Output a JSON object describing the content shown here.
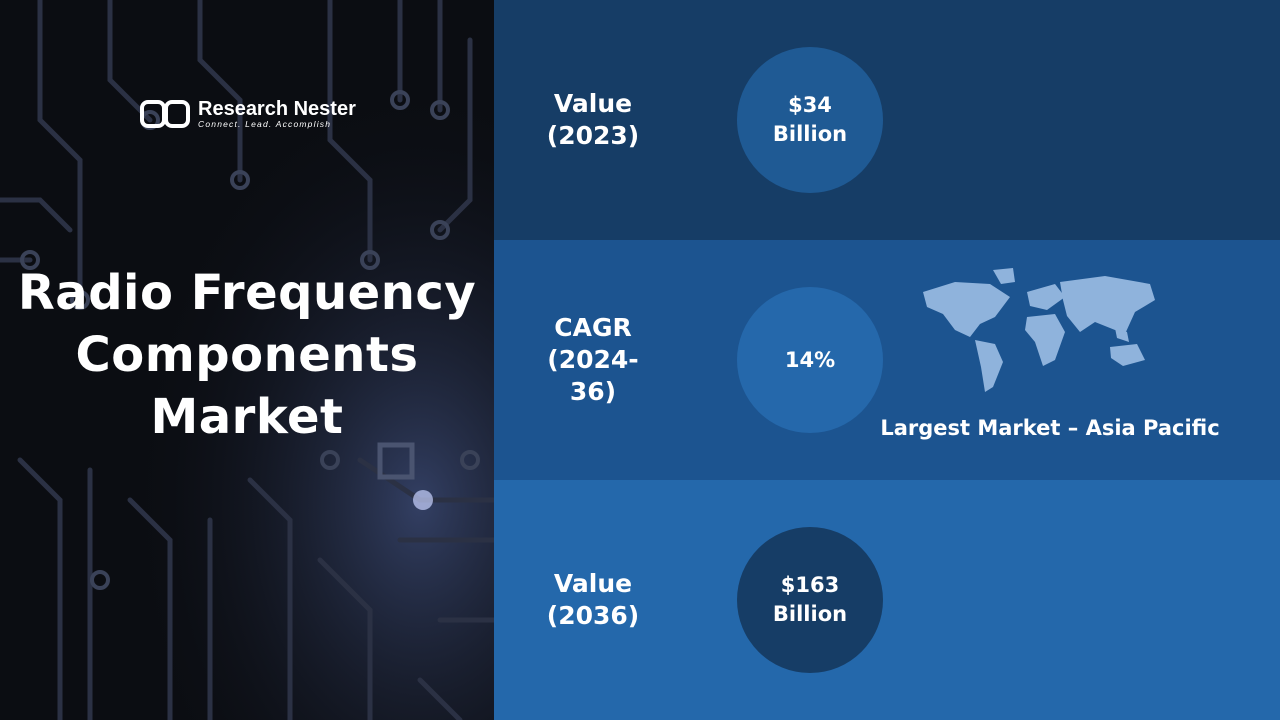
{
  "brand": {
    "name": "Research Nester",
    "tagline": "Connect. Lead. Accomplish"
  },
  "title": [
    "Radio Frequency",
    "Components",
    "Market"
  ],
  "rows": [
    {
      "label": [
        "Value",
        "(2023)"
      ],
      "value": [
        "$34",
        "Billion"
      ]
    },
    {
      "label": [
        "CAGR",
        "(2024-36)"
      ],
      "value": [
        "14%"
      ]
    },
    {
      "label": [
        "Value",
        "(2036)"
      ],
      "value": [
        "$163",
        "Billion"
      ]
    }
  ],
  "largest_market": "Largest Market – Asia Pacific"
}
